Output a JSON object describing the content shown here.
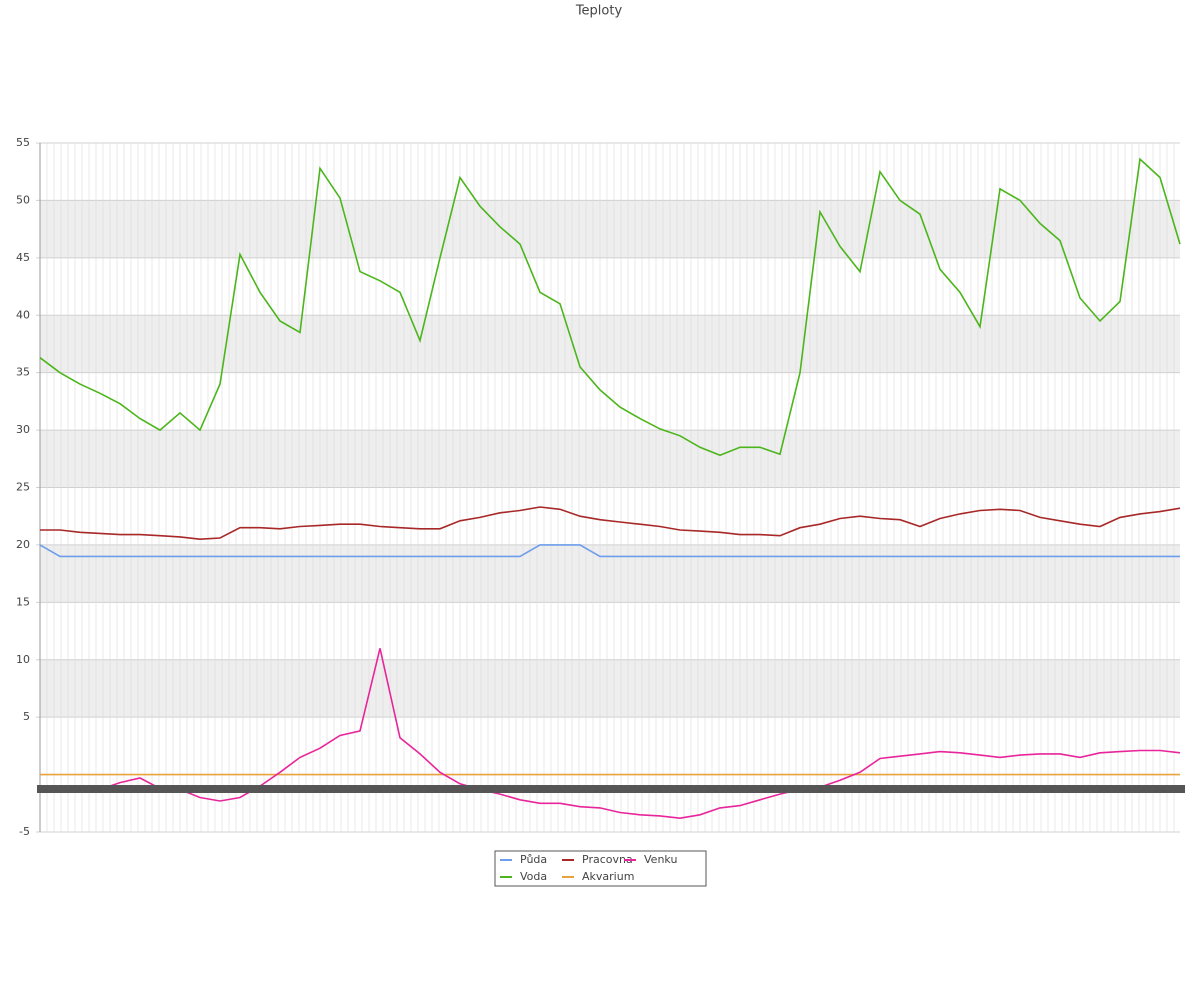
{
  "chart_data": {
    "type": "line",
    "title": "Teploty",
    "ylim": [
      -5,
      55
    ],
    "yticks": [
      -5,
      5,
      10,
      15,
      20,
      25,
      30,
      35,
      40,
      45,
      50,
      55
    ],
    "grid": true,
    "legend": "bottom",
    "series": [
      {
        "name": "Půda",
        "color": "#6d9eeb",
        "values": [
          20,
          19,
          19,
          19,
          19,
          19,
          19,
          19,
          19,
          19,
          19,
          19,
          19,
          19,
          19,
          19,
          19,
          19,
          19,
          19,
          19,
          19,
          19,
          19,
          19,
          20,
          20,
          20,
          19,
          19,
          19,
          19,
          19,
          19,
          19,
          19,
          19,
          19,
          19,
          19,
          19,
          19,
          19,
          19,
          19,
          19,
          19,
          19,
          19,
          19,
          19,
          19,
          19,
          19,
          19,
          19,
          19,
          19
        ]
      },
      {
        "name": "Voda",
        "color": "#4cb51c",
        "values": [
          36.3,
          35,
          34,
          33.2,
          32.3,
          31,
          30,
          31.5,
          30,
          34,
          45.3,
          42,
          39.5,
          38.5,
          52.8,
          50.2,
          43.8,
          43,
          42,
          37.8,
          45,
          52,
          49.5,
          47.7,
          46.2,
          42,
          41,
          35.5,
          33.5,
          32,
          31,
          30.1,
          29.5,
          28.5,
          27.8,
          28.5,
          28.5,
          27.9,
          35,
          49,
          46,
          43.8,
          52.5,
          50,
          48.8,
          44,
          42,
          39,
          51,
          50,
          48,
          46.5,
          41.5,
          39.5,
          41.2,
          53.6,
          52,
          46.2
        ]
      },
      {
        "name": "Pracovna",
        "color": "#a82828",
        "values": [
          21.3,
          21.3,
          21.1,
          21.0,
          20.9,
          20.9,
          20.8,
          20.7,
          20.5,
          20.6,
          21.5,
          21.5,
          21.4,
          21.6,
          21.7,
          21.8,
          21.8,
          21.6,
          21.5,
          21.4,
          21.4,
          22.1,
          22.4,
          22.8,
          23.0,
          23.3,
          23.1,
          22.5,
          22.2,
          22.0,
          21.8,
          21.6,
          21.3,
          21.2,
          21.1,
          20.9,
          20.9,
          20.8,
          21.5,
          21.8,
          22.3,
          22.5,
          22.3,
          22.2,
          21.6,
          22.3,
          22.7,
          23.0,
          23.1,
          23.0,
          22.4,
          22.1,
          21.8,
          21.6,
          22.4,
          22.7,
          22.9,
          23.2
        ]
      },
      {
        "name": "Akvarium",
        "color": "#e8a33c",
        "values": [
          0,
          0,
          0,
          0,
          0,
          0,
          0,
          0,
          0,
          0,
          0,
          0,
          0,
          0,
          0,
          0,
          0,
          0,
          0,
          0,
          0,
          0,
          0,
          0,
          0,
          0,
          0,
          0,
          0,
          0,
          0,
          0,
          0,
          0,
          0,
          0,
          0,
          0,
          0,
          0,
          0,
          0,
          0,
          0,
          0,
          0,
          0,
          0,
          0,
          0,
          0,
          0,
          0,
          0,
          0,
          0,
          0,
          0
        ]
      },
      {
        "name": "Venku",
        "color": "#e8259a",
        "values": [
          -1.0,
          -1.2,
          -1.4,
          -1.3,
          -0.7,
          -0.3,
          -1.2,
          -1.3,
          -2.0,
          -2.3,
          -2.0,
          -1.0,
          0.2,
          1.5,
          2.3,
          3.4,
          3.8,
          11,
          3.2,
          1.8,
          0.2,
          -0.8,
          -1.3,
          -1.7,
          -2.2,
          -2.5,
          -2.5,
          -2.8,
          -2.9,
          -3.3,
          -3.5,
          -3.6,
          -3.8,
          -3.5,
          -2.9,
          -2.7,
          -2.2,
          -1.7,
          -1.3,
          -1.1,
          -0.5,
          0.2,
          1.4,
          1.6,
          1.8,
          2.0,
          1.9,
          1.7,
          1.5,
          1.7,
          1.8,
          1.8,
          1.5,
          1.9,
          2.0,
          2.1,
          2.1,
          1.9
        ]
      }
    ]
  }
}
